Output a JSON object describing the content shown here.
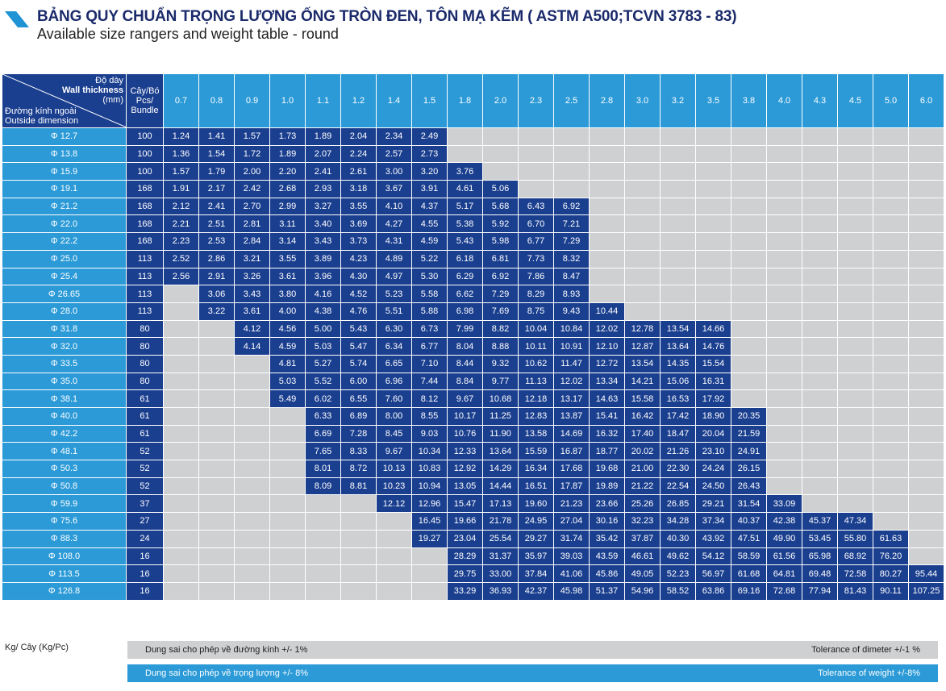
{
  "header": {
    "title": "BẢNG QUY CHUẨN TRỌNG LƯỢNG ỐNG TRÒN ĐEN, TÔN MẠ KẼM ( ASTM A500;TCVN 3783 - 83)",
    "subtitle": "Available size rangers and weight table - round"
  },
  "table": {
    "corner_top": [
      "Độ dày",
      "Wall thickness",
      "(mm)"
    ],
    "corner_bottom": [
      "Đường kính ngoài",
      "Outside dimension"
    ],
    "pcs_header": [
      "Cây/Bó",
      "Pcs/",
      "Bundle"
    ],
    "thickness": [
      "0.7",
      "0.8",
      "0.9",
      "1.0",
      "1.1",
      "1.2",
      "1.4",
      "1.5",
      "1.8",
      "2.0",
      "2.3",
      "2.5",
      "2.8",
      "3.0",
      "3.2",
      "3.5",
      "3.8",
      "4.0",
      "4.3",
      "4.5",
      "5.0",
      "6.0"
    ],
    "rows": [
      {
        "od": "Φ 12.7",
        "pcs": "100",
        "start": 0,
        "v": [
          "1.24",
          "1.41",
          "1.57",
          "1.73",
          "1.89",
          "2.04",
          "2.34",
          "2.49"
        ]
      },
      {
        "od": "Φ 13.8",
        "pcs": "100",
        "start": 0,
        "v": [
          "1.36",
          "1.54",
          "1.72",
          "1.89",
          "2.07",
          "2.24",
          "2.57",
          "2.73"
        ]
      },
      {
        "od": "Φ 15.9",
        "pcs": "100",
        "start": 0,
        "v": [
          "1.57",
          "1.79",
          "2.00",
          "2.20",
          "2.41",
          "2.61",
          "3.00",
          "3.20",
          "3.76"
        ]
      },
      {
        "od": "Φ 19.1",
        "pcs": "168",
        "start": 0,
        "v": [
          "1.91",
          "2.17",
          "2.42",
          "2.68",
          "2.93",
          "3.18",
          "3.67",
          "3.91",
          "4.61",
          "5.06"
        ]
      },
      {
        "od": "Φ 21.2",
        "pcs": "168",
        "start": 0,
        "v": [
          "2.12",
          "2.41",
          "2.70",
          "2.99",
          "3.27",
          "3.55",
          "4.10",
          "4.37",
          "5.17",
          "5.68",
          "6.43",
          "6.92"
        ]
      },
      {
        "od": "Φ 22.0",
        "pcs": "168",
        "start": 0,
        "v": [
          "2.21",
          "2.51",
          "2.81",
          "3.11",
          "3.40",
          "3.69",
          "4.27",
          "4.55",
          "5.38",
          "5.92",
          "6.70",
          "7.21"
        ]
      },
      {
        "od": "Φ 22.2",
        "pcs": "168",
        "start": 0,
        "v": [
          "2.23",
          "2.53",
          "2.84",
          "3.14",
          "3.43",
          "3.73",
          "4.31",
          "4.59",
          "5.43",
          "5.98",
          "6.77",
          "7.29"
        ]
      },
      {
        "od": "Φ 25.0",
        "pcs": "113",
        "start": 0,
        "v": [
          "2.52",
          "2.86",
          "3.21",
          "3.55",
          "3.89",
          "4.23",
          "4.89",
          "5.22",
          "6.18",
          "6.81",
          "7.73",
          "8.32"
        ]
      },
      {
        "od": "Φ 25.4",
        "pcs": "113",
        "start": 0,
        "v": [
          "2.56",
          "2.91",
          "3.26",
          "3.61",
          "3.96",
          "4.30",
          "4.97",
          "5.30",
          "6.29",
          "6.92",
          "7.86",
          "8.47"
        ]
      },
      {
        "od": "Φ 26.65",
        "pcs": "113",
        "start": 1,
        "v": [
          "3.06",
          "3.43",
          "3.80",
          "4.16",
          "4.52",
          "5.23",
          "5.58",
          "6.62",
          "7.29",
          "8.29",
          "8.93"
        ]
      },
      {
        "od": "Φ 28.0",
        "pcs": "113",
        "start": 1,
        "v": [
          "3.22",
          "3.61",
          "4.00",
          "4.38",
          "4.76",
          "5.51",
          "5.88",
          "6.98",
          "7.69",
          "8.75",
          "9.43",
          "10.44"
        ]
      },
      {
        "od": "Φ 31.8",
        "pcs": "80",
        "start": 2,
        "v": [
          "4.12",
          "4.56",
          "5.00",
          "5.43",
          "6.30",
          "6.73",
          "7.99",
          "8.82",
          "10.04",
          "10.84",
          "12.02",
          "12.78",
          "13.54",
          "14.66"
        ]
      },
      {
        "od": "Φ 32.0",
        "pcs": "80",
        "start": 2,
        "v": [
          "4.14",
          "4.59",
          "5.03",
          "5.47",
          "6.34",
          "6.77",
          "8.04",
          "8.88",
          "10.11",
          "10.91",
          "12.10",
          "12.87",
          "13.64",
          "14.76"
        ]
      },
      {
        "od": "Φ 33.5",
        "pcs": "80",
        "start": 3,
        "v": [
          "4.81",
          "5.27",
          "5.74",
          "6.65",
          "7.10",
          "8.44",
          "9.32",
          "10.62",
          "11.47",
          "12.72",
          "13.54",
          "14.35",
          "15.54"
        ]
      },
      {
        "od": "Φ 35.0",
        "pcs": "80",
        "start": 3,
        "v": [
          "5.03",
          "5.52",
          "6.00",
          "6.96",
          "7.44",
          "8.84",
          "9.77",
          "11.13",
          "12.02",
          "13.34",
          "14.21",
          "15.06",
          "16.31"
        ]
      },
      {
        "od": "Φ 38.1",
        "pcs": "61",
        "start": 3,
        "v": [
          "5.49",
          "6.02",
          "6.55",
          "7.60",
          "8.12",
          "9.67",
          "10.68",
          "12.18",
          "13.17",
          "14.63",
          "15.58",
          "16.53",
          "17.92"
        ]
      },
      {
        "od": "Φ 40.0",
        "pcs": "61",
        "start": 4,
        "v": [
          "6.33",
          "6.89",
          "8.00",
          "8.55",
          "10.17",
          "11.25",
          "12.83",
          "13.87",
          "15.41",
          "16.42",
          "17.42",
          "18.90",
          "20.35"
        ]
      },
      {
        "od": "Φ 42.2",
        "pcs": "61",
        "start": 4,
        "v": [
          "6.69",
          "7.28",
          "8.45",
          "9.03",
          "10.76",
          "11.90",
          "13.58",
          "14.69",
          "16.32",
          "17.40",
          "18.47",
          "20.04",
          "21.59"
        ]
      },
      {
        "od": "Φ 48.1",
        "pcs": "52",
        "start": 4,
        "v": [
          "7.65",
          "8.33",
          "9.67",
          "10.34",
          "12.33",
          "13.64",
          "15.59",
          "16.87",
          "18.77",
          "20.02",
          "21.26",
          "23.10",
          "24.91"
        ]
      },
      {
        "od": "Φ 50.3",
        "pcs": "52",
        "start": 4,
        "v": [
          "8.01",
          "8.72",
          "10.13",
          "10.83",
          "12.92",
          "14.29",
          "16.34",
          "17.68",
          "19.68",
          "21.00",
          "22.30",
          "24.24",
          "26.15"
        ]
      },
      {
        "od": "Φ 50.8",
        "pcs": "52",
        "start": 4,
        "v": [
          "8.09",
          "8.81",
          "10.23",
          "10.94",
          "13.05",
          "14.44",
          "16.51",
          "17.87",
          "19.89",
          "21.22",
          "22.54",
          "24.50",
          "26.43"
        ]
      },
      {
        "od": "Φ 59.9",
        "pcs": "37",
        "start": 6,
        "v": [
          "12.12",
          "12.96",
          "15.47",
          "17.13",
          "19.60",
          "21.23",
          "23.66",
          "25.26",
          "26.85",
          "29.21",
          "31.54",
          "33.09"
        ]
      },
      {
        "od": "Φ 75.6",
        "pcs": "27",
        "start": 7,
        "v": [
          "16.45",
          "19.66",
          "21.78",
          "24.95",
          "27.04",
          "30.16",
          "32.23",
          "34.28",
          "37.34",
          "40.37",
          "42.38",
          "45.37",
          "47.34"
        ]
      },
      {
        "od": "Φ 88.3",
        "pcs": "24",
        "start": 7,
        "v": [
          "19.27",
          "23.04",
          "25.54",
          "29.27",
          "31.74",
          "35.42",
          "37.87",
          "40.30",
          "43.92",
          "47.51",
          "49.90",
          "53.45",
          "55.80",
          "61.63"
        ]
      },
      {
        "od": "Φ 108.0",
        "pcs": "16",
        "start": 8,
        "v": [
          "28.29",
          "31.37",
          "35.97",
          "39.03",
          "43.59",
          "46.61",
          "49.62",
          "54.12",
          "58.59",
          "61.56",
          "65.98",
          "68.92",
          "76.20"
        ]
      },
      {
        "od": "Φ 113.5",
        "pcs": "16",
        "start": 8,
        "v": [
          "29.75",
          "33.00",
          "37.84",
          "41.06",
          "45.86",
          "49.05",
          "52.23",
          "56.97",
          "61.68",
          "64.81",
          "69.48",
          "72.58",
          "80.27",
          "95.44"
        ]
      },
      {
        "od": "Φ 126.8",
        "pcs": "16",
        "start": 8,
        "v": [
          "33.29",
          "36.93",
          "42.37",
          "45.98",
          "51.37",
          "54.96",
          "58.52",
          "63.86",
          "69.16",
          "72.68",
          "77.94",
          "81.43",
          "90.11",
          "107.25"
        ]
      }
    ]
  },
  "footer": {
    "unit": "Kg/ Cây (Kg/Pc)",
    "tol_diameter_vi": "Dung sai cho phép về đường kính +/- 1%",
    "tol_diameter_en": "Tolerance of dimeter +/-1 %",
    "tol_weight_vi": "Dung sai cho phép về trọng lượng +/- 8%",
    "tol_weight_en": "Tolerance of weight +/-8%"
  }
}
